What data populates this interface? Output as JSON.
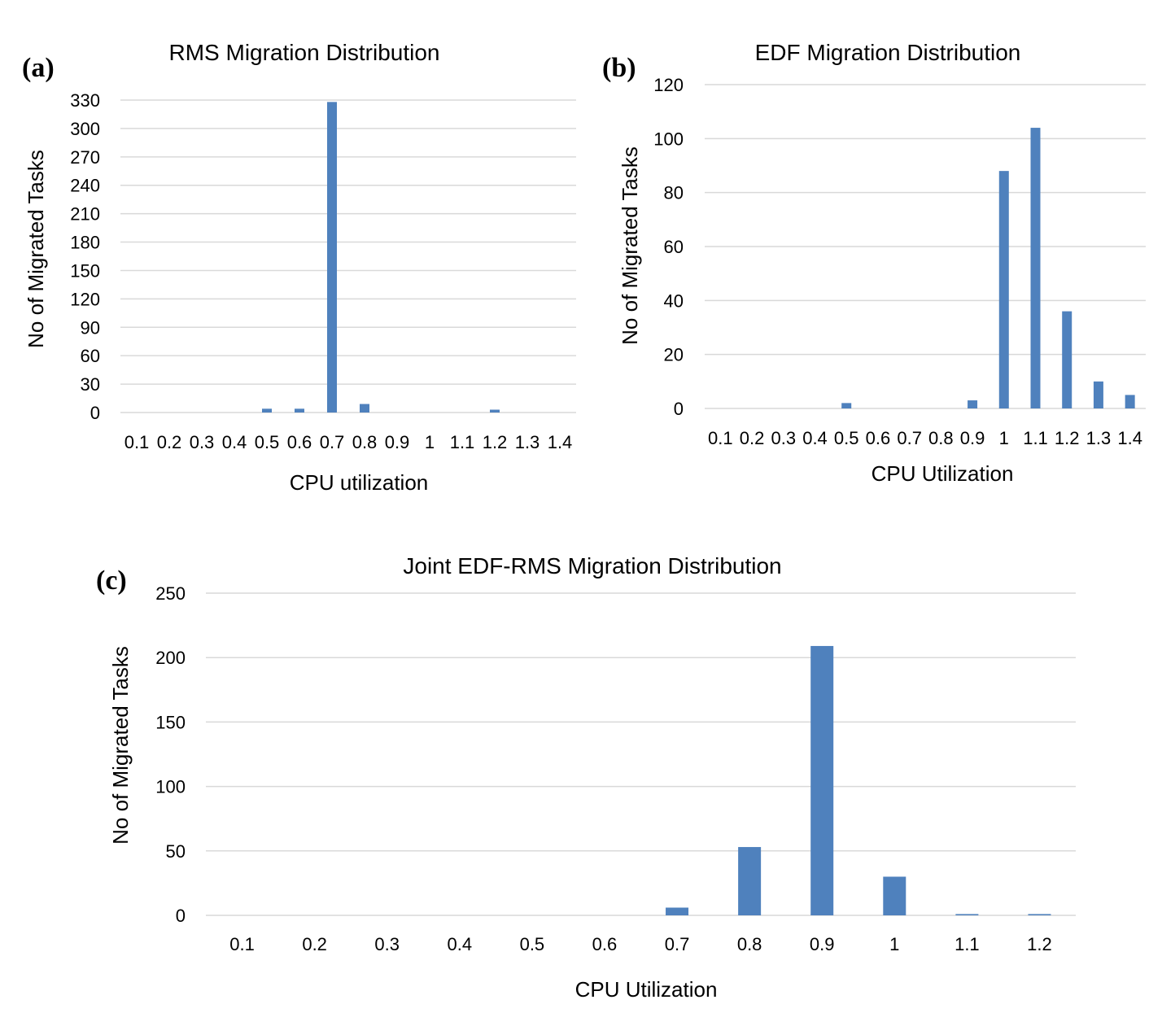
{
  "chart_data": [
    {
      "panel": "(a)",
      "type": "bar",
      "title": "RMS Migration Distribution",
      "xlabel": "CPU utilization",
      "ylabel": "No of Migrated Tasks",
      "categories": [
        "0.1",
        "0.2",
        "0.3",
        "0.4",
        "0.5",
        "0.6",
        "0.7",
        "0.8",
        "0.9",
        "1",
        "1.1",
        "1.2",
        "1.3",
        "1.4"
      ],
      "values": [
        0,
        0,
        0,
        0,
        4,
        4,
        328,
        9,
        0,
        0,
        0,
        3,
        0,
        0
      ],
      "ylim": [
        0,
        330
      ],
      "yticks": [
        "0",
        "30",
        "60",
        "90",
        "120",
        "150",
        "180",
        "210",
        "240",
        "270",
        "300",
        "330"
      ],
      "grid": true,
      "color": "#4f81bd"
    },
    {
      "panel": "(b)",
      "type": "bar",
      "title": "EDF Migration Distribution",
      "xlabel": "CPU Utilization",
      "ylabel": "No of Migrated Tasks",
      "categories": [
        "0.1",
        "0.2",
        "0.3",
        "0.4",
        "0.5",
        "0.6",
        "0.7",
        "0.8",
        "0.9",
        "1",
        "1.1",
        "1.2",
        "1.3",
        "1.4"
      ],
      "values": [
        0,
        0,
        0,
        0,
        2,
        0,
        0,
        0,
        3,
        88,
        104,
        36,
        10,
        5
      ],
      "ylim": [
        0,
        120
      ],
      "yticks": [
        "0",
        "20",
        "40",
        "60",
        "80",
        "100",
        "120"
      ],
      "grid": true,
      "color": "#4f81bd"
    },
    {
      "panel": "(c)",
      "type": "bar",
      "title": "Joint EDF-RMS Migration Distribution",
      "xlabel": "CPU Utilization",
      "ylabel": "No of Migrated Tasks",
      "categories": [
        "0.1",
        "0.2",
        "0.3",
        "0.4",
        "0.5",
        "0.6",
        "0.7",
        "0.8",
        "0.9",
        "1",
        "1.1",
        "1.2"
      ],
      "values": [
        0,
        0,
        0,
        0,
        0,
        0,
        6,
        53,
        209,
        30,
        1,
        1
      ],
      "ylim": [
        0,
        250
      ],
      "yticks": [
        "0",
        "50",
        "100",
        "150",
        "200",
        "250"
      ],
      "grid": true,
      "color": "#4f81bd"
    }
  ]
}
